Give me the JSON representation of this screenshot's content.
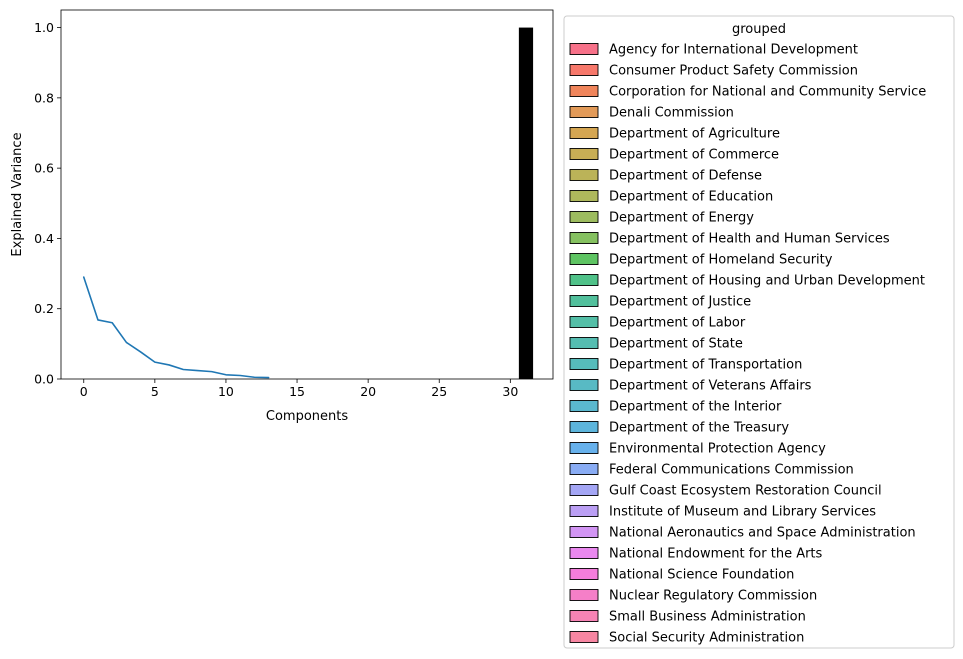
{
  "chart_data": {
    "type": "line",
    "xlabel": "Components",
    "ylabel": "Explained Variance",
    "xlim": [
      -1.6,
      33.0
    ],
    "ylim": [
      0,
      1.05
    ],
    "xticks": [
      "0",
      "5",
      "10",
      "15",
      "20",
      "25",
      "30"
    ],
    "yticks": [
      "0.0",
      "0.2",
      "0.4",
      "0.6",
      "0.8",
      "1.0"
    ],
    "series": [
      {
        "values": [
          {
            "x": 0,
            "y": 0.29
          },
          {
            "x": 1,
            "y": 0.168
          },
          {
            "x": 2,
            "y": 0.16
          },
          {
            "x": 3,
            "y": 0.104
          },
          {
            "x": 4,
            "y": 0.077
          },
          {
            "x": 5,
            "y": 0.048
          },
          {
            "x": 6,
            "y": 0.04
          },
          {
            "x": 7,
            "y": 0.027
          },
          {
            "x": 8,
            "y": 0.024
          },
          {
            "x": 9,
            "y": 0.021
          },
          {
            "x": 10,
            "y": 0.012
          },
          {
            "x": 11,
            "y": 0.01
          },
          {
            "x": 12,
            "y": 0.005
          },
          {
            "x": 13,
            "y": 0.004
          }
        ],
        "color": "#1f77b4"
      }
    ],
    "bars": [
      {
        "x_start": 30.6,
        "x_end": 31.6,
        "value": 1.0,
        "color": "#000000"
      }
    ],
    "grid": false,
    "legend": {
      "title": "grouped",
      "placement": "outside-right",
      "entries": [
        {
          "label": "Agency for International Development",
          "color": "#f77189"
        },
        {
          "label": "Consumer Product Safety Commission",
          "color": "#f7786b"
        },
        {
          "label": "Corporation for National and Community Service",
          "color": "#f0855b"
        },
        {
          "label": "Denali Commission",
          "color": "#e29a58"
        },
        {
          "label": "Department of Agriculture",
          "color": "#d5a652"
        },
        {
          "label": "Department of Commerce",
          "color": "#c8ae55"
        },
        {
          "label": "Department of Defense",
          "color": "#bbb358"
        },
        {
          "label": "Department of Education",
          "color": "#aeb85c"
        },
        {
          "label": "Department of Energy",
          "color": "#9dbc5f"
        },
        {
          "label": "Department of Health and Human Services",
          "color": "#85c160"
        },
        {
          "label": "Department of Homeland Security",
          "color": "#5ec462"
        },
        {
          "label": "Department of Housing and Urban Development",
          "color": "#50c289"
        },
        {
          "label": "Department of Justice",
          "color": "#52c09c"
        },
        {
          "label": "Department of Labor",
          "color": "#54bfa7"
        },
        {
          "label": "Department of State",
          "color": "#55bdb1"
        },
        {
          "label": "Department of Transportation",
          "color": "#56bcbb"
        },
        {
          "label": "Department of Veterans Affairs",
          "color": "#58bac4"
        },
        {
          "label": "Department of the Interior",
          "color": "#5ab8cf"
        },
        {
          "label": "Department of the Treasury",
          "color": "#5db5dc"
        },
        {
          "label": "Environmental Protection Agency",
          "color": "#67b1ec"
        },
        {
          "label": "Federal Communications Commission",
          "color": "#89acf4"
        },
        {
          "label": "Gulf Coast Ecosystem Restoration Council",
          "color": "#a4a6f5"
        },
        {
          "label": "Institute of Museum and Library Services",
          "color": "#bb9ff4"
        },
        {
          "label": "National Aeronautics and Space Administration",
          "color": "#d295f4"
        },
        {
          "label": "National Endowment for the Arts",
          "color": "#ea88ef"
        },
        {
          "label": "National Science Foundation",
          "color": "#f47ddc"
        },
        {
          "label": "Nuclear Regulatory Commission",
          "color": "#f57fc8"
        },
        {
          "label": "Small Business Administration",
          "color": "#f683b4"
        },
        {
          "label": "Social Security Administration",
          "color": "#f786a2"
        }
      ]
    }
  }
}
